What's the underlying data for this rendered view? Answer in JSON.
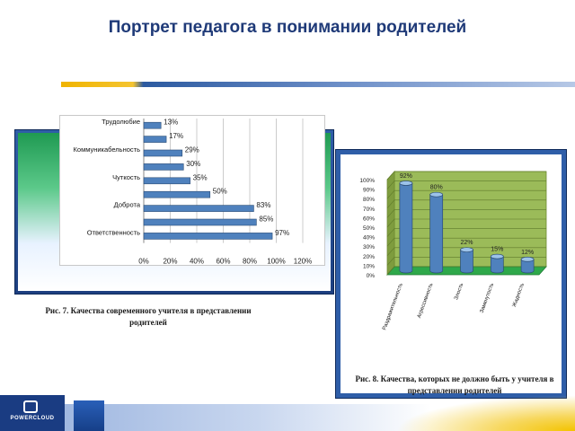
{
  "slide": {
    "title": "Портрет педагога в понимании родителей",
    "footer_logo_text": "POWERCLOUD"
  },
  "chart_data": [
    {
      "type": "bar",
      "orientation": "horizontal",
      "categories": [
        "Трудолюбие",
        "",
        "Коммуникабельность",
        "",
        "Чуткость",
        "",
        "Доброта",
        "",
        "Ответственность"
      ],
      "values": [
        13,
        17,
        29,
        30,
        35,
        50,
        83,
        85,
        97
      ],
      "data_labels": [
        "13%",
        "17%",
        "29%",
        "30%",
        "35%",
        "50%",
        "83%",
        "85%",
        "97%"
      ],
      "x_ticks": [
        "0%",
        "20%",
        "40%",
        "60%",
        "80%",
        "100%",
        "120%"
      ],
      "xlim": [
        0,
        120
      ],
      "grid": true,
      "legend": "none",
      "colors": {
        "bar": "#4f81bd",
        "bar_edge": "#2c4d75",
        "grid": "#c0c0c0"
      },
      "caption": "Рис. 7. Качества современного учителя в представлении родителей"
    },
    {
      "type": "bar",
      "style": "3d-cylinder",
      "categories": [
        "Раздражительность",
        "Агрессивность",
        "Злость",
        "Замкнутость",
        "Жадность"
      ],
      "values": [
        92,
        80,
        22,
        15,
        12
      ],
      "data_labels": [
        "92%",
        "80%",
        "22%",
        "15%",
        "12%"
      ],
      "y_ticks": [
        "0%",
        "10%",
        "20%",
        "30%",
        "40%",
        "50%",
        "60%",
        "70%",
        "80%",
        "90%",
        "100%"
      ],
      "ylim": [
        0,
        100
      ],
      "grid": true,
      "legend": "none",
      "colors": {
        "bar": "#4f81bd",
        "bar_dark": "#2c4d75",
        "bar_light": "#9cc3ea",
        "wall": "#9bbb59",
        "floor": "#2ea84a"
      },
      "caption": "Рис. 8. Качества, которых не должно быть у учителя в представлении родителей"
    }
  ]
}
